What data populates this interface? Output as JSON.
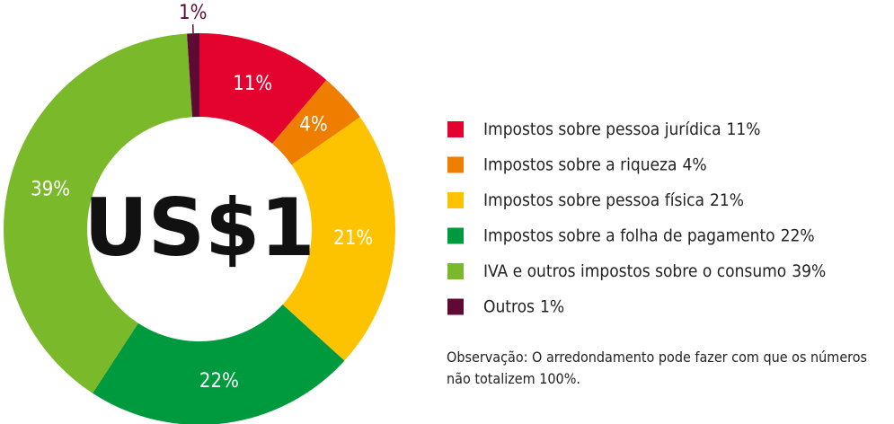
{
  "chart_data": {
    "type": "donut",
    "center_label": "US$1",
    "categories": [
      "Impostos sobre pessoa jurídica",
      "Impostos sobre a riqueza",
      "Impostos sobre pessoa física",
      "Impostos sobre a folha de pagamento",
      "IVA e outros impostos sobre o consumo",
      "Outros"
    ],
    "values": [
      11,
      4,
      21,
      22,
      39,
      1
    ],
    "value_labels": [
      "11%",
      "4%",
      "21%",
      "22%",
      "39%",
      "1%"
    ],
    "colors": [
      "#e4032e",
      "#ee7d00",
      "#fdc300",
      "#009a3e",
      "#7ab929",
      "#5e0a35"
    ],
    "legend": "right",
    "note": "Observação: O arredondamento pode fazer com que os números não totalizem 100%."
  }
}
